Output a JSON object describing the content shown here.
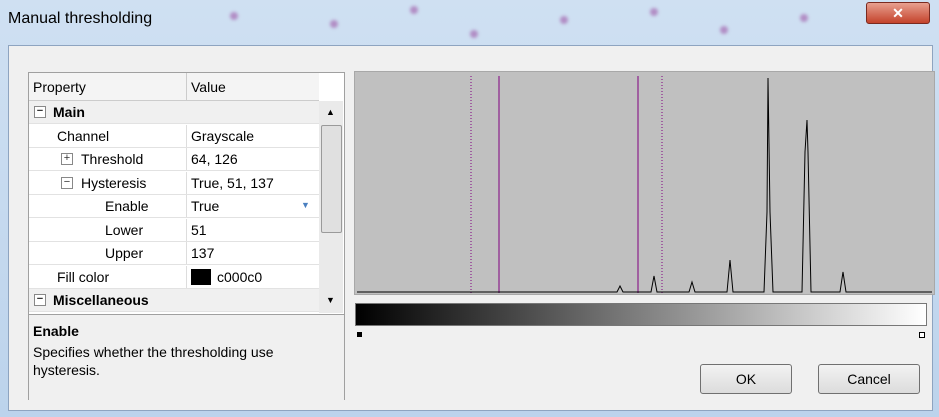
{
  "window": {
    "title": "Manual thresholding"
  },
  "property_grid": {
    "headers": [
      "Property",
      "Value"
    ],
    "rows": [
      {
        "label": "Main"
      },
      {
        "label": "Channel",
        "value": "Grayscale"
      },
      {
        "label": "Threshold",
        "value": "64, 126"
      },
      {
        "label": "Hysteresis",
        "value": "True, 51, 137"
      },
      {
        "label": "Enable",
        "value": "True"
      },
      {
        "label": "Lower",
        "value": "51"
      },
      {
        "label": "Upper",
        "value": "137"
      },
      {
        "label": "Fill color",
        "value": "c000c0"
      },
      {
        "label": "Miscellaneous"
      }
    ]
  },
  "description": {
    "title": "Enable",
    "text": "Specifies whether the thresholding use hysteresis."
  },
  "buttons": {
    "ok": "OK",
    "cancel": "Cancel"
  }
}
